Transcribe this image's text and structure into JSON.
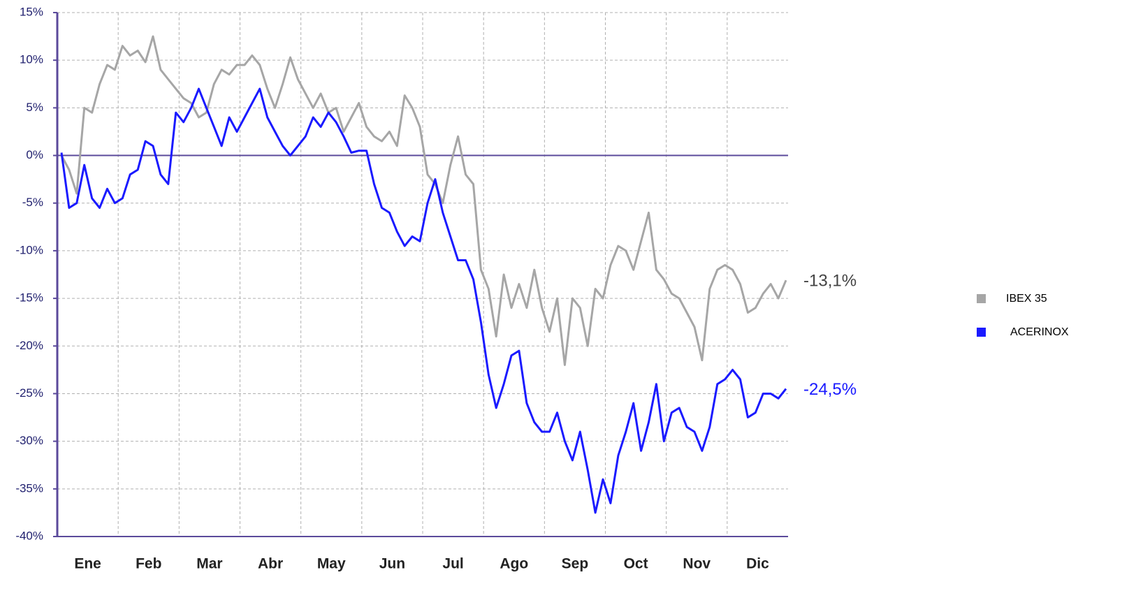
{
  "chart_data": {
    "type": "line",
    "x_tick_labels": [
      "Ene",
      "Feb",
      "Mar",
      "Abr",
      "May",
      "Jun",
      "Jul",
      "Ago",
      "Sep",
      "Oct",
      "Nov",
      "Dic"
    ],
    "ylim": [
      -40,
      15
    ],
    "yticks": [
      {
        "value": -40,
        "label": "-40%"
      },
      {
        "value": -35,
        "label": "-35%"
      },
      {
        "value": -30,
        "label": "-30%"
      },
      {
        "value": -25,
        "label": "-25%"
      },
      {
        "value": -20,
        "label": "-20%"
      },
      {
        "value": -15,
        "label": "-15%"
      },
      {
        "value": -10,
        "label": "-10%"
      },
      {
        "value": -5,
        "label": "-5%"
      },
      {
        "value": 0,
        "label": "0%"
      },
      {
        "value": 5,
        "label": "5%"
      },
      {
        "value": 10,
        "label": "10%"
      },
      {
        "value": 15,
        "label": "15%"
      }
    ],
    "grid": true,
    "zero_line": true,
    "legend": "right",
    "series": [
      {
        "name": "IBEX 35",
        "color": "#a6a6a6",
        "end_label": "-13,1%",
        "values": [
          0,
          -1.5,
          -4,
          5,
          4.5,
          7.5,
          9.5,
          9,
          11.5,
          10.5,
          11,
          9.8,
          12.5,
          9,
          8,
          7,
          6,
          5.5,
          4,
          4.5,
          7.5,
          9,
          8.5,
          9.5,
          9.5,
          10.5,
          9.5,
          7,
          5,
          7.5,
          10.3,
          8,
          6.5,
          5,
          6.5,
          4.5,
          5,
          2.5,
          4,
          5.5,
          3,
          2,
          1.5,
          2.5,
          1,
          6.3,
          5,
          3,
          -2,
          -3,
          -5,
          -1,
          2,
          -2,
          -3,
          -12,
          -14,
          -19,
          -12.5,
          -16,
          -13.5,
          -16,
          -12,
          -16,
          -18.5,
          -15,
          -22,
          -15,
          -16,
          -20,
          -14,
          -15,
          -11.5,
          -9.5,
          -10,
          -12,
          -9,
          -6,
          -12,
          -13,
          -14.5,
          -15,
          -16.5,
          -18,
          -21.5,
          -14,
          -12,
          -11.5,
          -12,
          -13.5,
          -16.5,
          -16,
          -14.5,
          -13.5,
          -15,
          -13.1
        ]
      },
      {
        "name": "ACERINOX",
        "color": "#1a1aff",
        "end_label": "-24,5%",
        "values": [
          0.3,
          -5.5,
          -5,
          -1,
          -4.5,
          -5.5,
          -3.5,
          -5,
          -4.5,
          -2,
          -1.5,
          1.5,
          1,
          -2,
          -3,
          4.5,
          3.5,
          5,
          7,
          5,
          3,
          1,
          4,
          2.5,
          4,
          5.5,
          7,
          4,
          2.5,
          1,
          0,
          1,
          2,
          4,
          3,
          4.5,
          3.5,
          2,
          0.3,
          0.5,
          0.5,
          -3,
          -5.5,
          -6,
          -8,
          -9.5,
          -8.5,
          -9,
          -5,
          -2.5,
          -6,
          -8.5,
          -11,
          -11,
          -13,
          -17.5,
          -23,
          -26.5,
          -24,
          -21,
          -20.5,
          -26,
          -28,
          -29,
          -29,
          -27,
          -30,
          -32,
          -29,
          -33,
          -37.5,
          -34,
          -36.5,
          -31.5,
          -29,
          -26,
          -31,
          -28,
          -24,
          -30,
          -27,
          -26.5,
          -28.5,
          -29,
          -31,
          -28.5,
          -24,
          -23.5,
          -22.5,
          -23.5,
          -27.5,
          -27,
          -25,
          -25,
          -25.5,
          -24.5
        ]
      }
    ]
  }
}
